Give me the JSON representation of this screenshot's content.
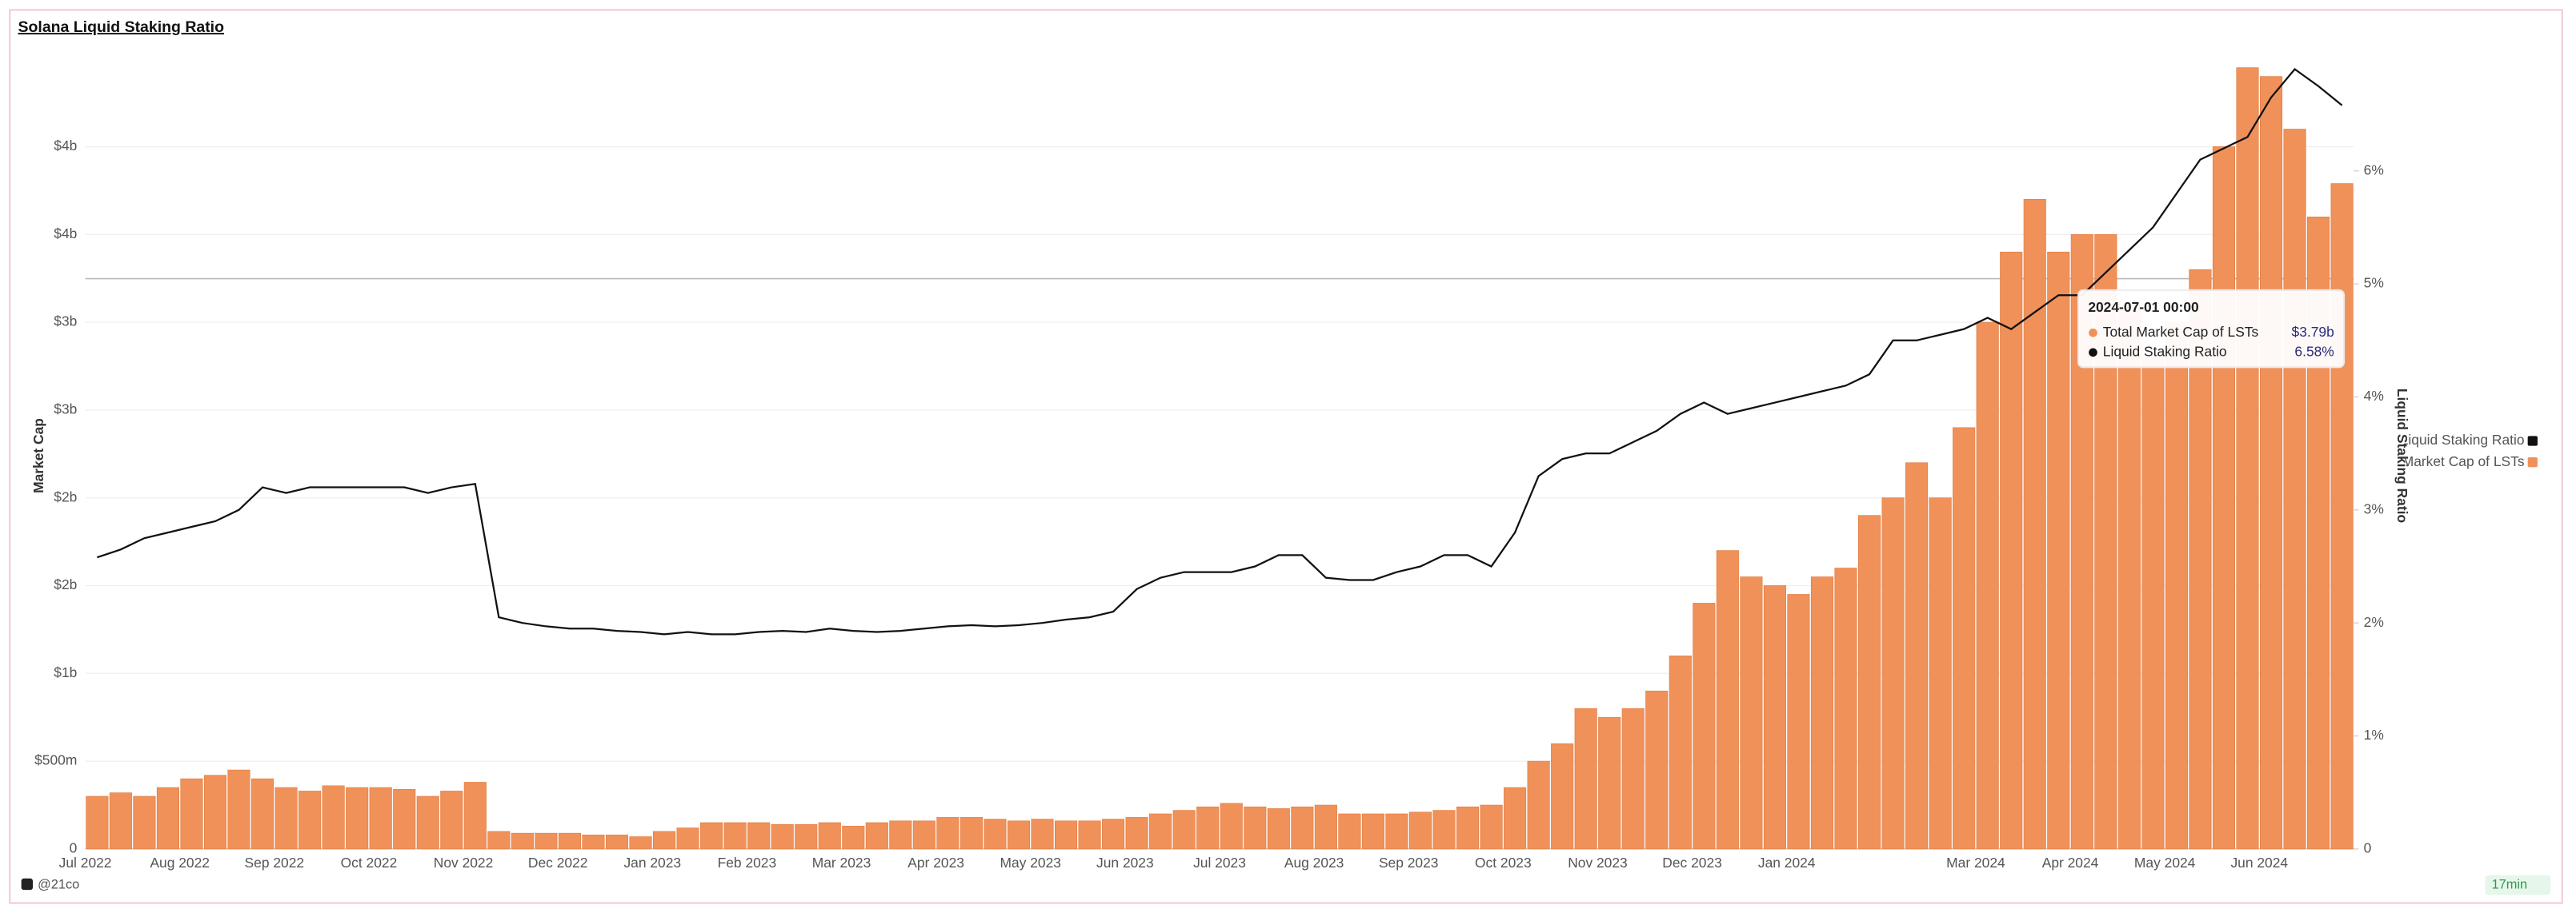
{
  "chart_data": {
    "type": "bar_line",
    "title": "Solana Liquid Staking Ratio",
    "y_label": "Market Cap",
    "y2_label": "Liquid Staking Ratio",
    "categories": [
      "Jul 2022",
      null,
      null,
      null,
      "Aug 2022",
      null,
      null,
      null,
      "Sep 2022",
      null,
      null,
      null,
      "Oct 2022",
      null,
      null,
      null,
      "Nov 2022",
      null,
      null,
      null,
      "Dec 2022",
      null,
      null,
      null,
      "Jan 2023",
      null,
      null,
      null,
      "Feb 2023",
      null,
      null,
      null,
      "Mar 2023",
      null,
      null,
      null,
      "Apr 2023",
      null,
      null,
      null,
      "May 2023",
      null,
      null,
      null,
      "Jun 2023",
      null,
      null,
      null,
      "Jul 2023",
      null,
      null,
      null,
      "Aug 2023",
      null,
      null,
      null,
      "Sep 2023",
      null,
      null,
      null,
      "Oct 2023",
      null,
      null,
      null,
      "Nov 2023",
      null,
      null,
      null,
      "Dec 2023",
      null,
      null,
      null,
      "Jan 2024",
      null,
      null,
      null,
      null,
      null,
      null,
      null,
      "Mar 2024",
      null,
      null,
      null,
      "Apr 2024",
      null,
      null,
      null,
      "May 2024",
      null,
      null,
      null,
      "Jun 2024",
      null,
      null,
      null
    ],
    "series": [
      {
        "name": "Total Market Cap of LSTs",
        "color": "#f0915a",
        "kind": "bar",
        "values": [
          300000000.0,
          320000000.0,
          300000000.0,
          350000000.0,
          400000000.0,
          420000000.0,
          450000000.0,
          400000000.0,
          350000000.0,
          330000000.0,
          360000000.0,
          350000000.0,
          350000000.0,
          340000000.0,
          300000000.0,
          330000000.0,
          380000000.0,
          100000000.0,
          90000000.0,
          90000000.0,
          90000000.0,
          80000000.0,
          80000000.0,
          70000000.0,
          100000000.0,
          120000000.0,
          150000000.0,
          150000000.0,
          150000000.0,
          140000000.0,
          140000000.0,
          150000000.0,
          130000000.0,
          150000000.0,
          160000000.0,
          160000000.0,
          180000000.0,
          180000000.0,
          170000000.0,
          160000000.0,
          170000000.0,
          160000000.0,
          160000000.0,
          170000000.0,
          180000000.0,
          200000000.0,
          220000000.0,
          240000000.0,
          260000000.0,
          240000000.0,
          230000000.0,
          240000000.0,
          250000000.0,
          200000000.0,
          200000000.0,
          200000000.0,
          210000000.0,
          220000000.0,
          240000000.0,
          250000000.0,
          350000000.0,
          500000000.0,
          600000000.0,
          800000000.0,
          750000000.0,
          800000000.0,
          900000000.0,
          1100000000.0,
          1400000000.0,
          1700000000.0,
          1550000000.0,
          1500000000.0,
          1450000000.0,
          1550000000.0,
          1600000000.0,
          1900000000.0,
          2000000000.0,
          2200000000.0,
          2000000000.0,
          2400000000.0,
          3000000000.0,
          3400000000.0,
          3700000000.0,
          3400000000.0,
          3500000000.0,
          3500000000.0,
          3100000000.0,
          2800000000.0,
          3000000000.0,
          3300000000.0,
          4000000000.0,
          4450000000.0,
          4400000000.0,
          4100000000.0,
          3600000000.0,
          3790000000.0
        ]
      },
      {
        "name": "Liquid Staking Ratio",
        "color": "#111111",
        "kind": "line",
        "axis": "y2",
        "values": [
          2.58,
          2.65,
          2.75,
          2.8,
          2.85,
          2.9,
          3.0,
          3.2,
          3.15,
          3.2,
          3.2,
          3.2,
          3.2,
          3.2,
          3.15,
          3.2,
          3.23,
          2.05,
          2.0,
          1.97,
          1.95,
          1.95,
          1.93,
          1.92,
          1.9,
          1.92,
          1.9,
          1.9,
          1.92,
          1.93,
          1.92,
          1.95,
          1.93,
          1.92,
          1.93,
          1.95,
          1.97,
          1.98,
          1.97,
          1.98,
          2.0,
          2.03,
          2.05,
          2.1,
          2.3,
          2.4,
          2.45,
          2.45,
          2.45,
          2.5,
          2.6,
          2.6,
          2.4,
          2.38,
          2.38,
          2.45,
          2.5,
          2.6,
          2.6,
          2.5,
          2.8,
          3.3,
          3.45,
          3.5,
          3.5,
          3.6,
          3.7,
          3.85,
          3.95,
          3.85,
          3.9,
          3.95,
          4.0,
          4.05,
          4.1,
          4.2,
          4.5,
          4.5,
          4.55,
          4.6,
          4.7,
          4.6,
          4.75,
          4.9,
          4.9,
          5.1,
          5.3,
          5.5,
          5.8,
          6.1,
          6.2,
          6.3,
          6.65,
          6.9,
          6.75,
          6.58
        ]
      }
    ],
    "ylim": [
      0,
      4480000000.0
    ],
    "yticks": [
      0,
      {
        "value": 500000000.0,
        "label": "$500m"
      },
      {
        "value": 1000000000.0,
        "label": "$1b"
      },
      {
        "value": 1500000000.0,
        "label": "$2b"
      },
      {
        "value": 2000000000.0,
        "label": "$2b"
      },
      {
        "value": 2500000000.0,
        "label": "$3b"
      },
      {
        "value": 3000000000.0,
        "label": "$3b"
      },
      {
        "value": 3500000000.0,
        "label": "$4b"
      },
      {
        "value": 4000000000.0,
        "label": "$4b"
      }
    ],
    "y2lim": [
      0,
      6.96
    ],
    "y2ticks": [
      0,
      {
        "value": 1,
        "label": "1%"
      },
      {
        "value": 2,
        "label": "2%"
      },
      {
        "value": 3,
        "label": "3%"
      },
      {
        "value": 4,
        "label": "4%"
      },
      {
        "value": 5,
        "label": "5%"
      },
      {
        "value": 6,
        "label": "6%"
      }
    ],
    "grid": true,
    "legend": "right",
    "tooltip": {
      "title": "2024-07-01 00:00",
      "values": [
        "$3.79b",
        "6.58%"
      ]
    }
  },
  "footer": {
    "author": "@21co",
    "age": "17min"
  }
}
